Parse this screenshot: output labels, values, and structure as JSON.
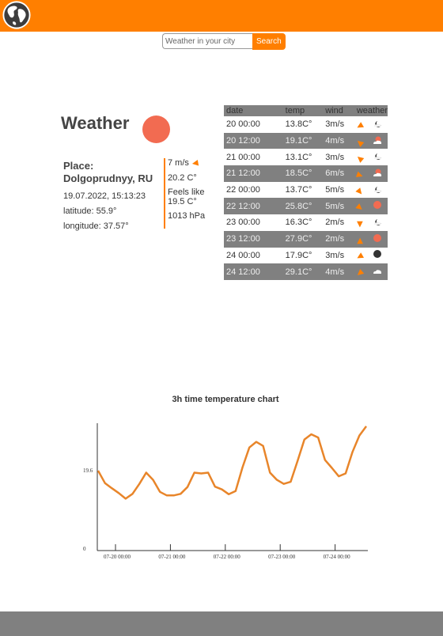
{
  "header": {
    "logo_icon": "globe-icon",
    "bg_color": "#ff7f00"
  },
  "search": {
    "placeholder": "Weather in your city",
    "button_label": "Search"
  },
  "main": {
    "title": "Weather",
    "current_icon": "sun-icon",
    "place_label": "Place:",
    "place_name": "Dolgoprudnyy, RU",
    "datetime": "19.07.2022, 15:13:23",
    "latitude": "latitude: 55.9°",
    "longitude": "longitude: 37.57°"
  },
  "current": {
    "wind": "7 m/s",
    "temp": "20.2 C°",
    "feels_label": "Feels like",
    "feels_value": "19.5 C°",
    "pressure": "1013 hPa"
  },
  "forecast": {
    "headers": [
      "date",
      "temp",
      "wind",
      "weather"
    ],
    "rows": [
      {
        "date": "20 00:00",
        "temp": "13.8C°",
        "wind": "3m/s",
        "icon": "moon-cloud-icon"
      },
      {
        "date": "20 12:00",
        "temp": "19.1C°",
        "wind": "4m/s",
        "icon": "sun-cloud-icon"
      },
      {
        "date": "21 00:00",
        "temp": "13.1C°",
        "wind": "3m/s",
        "icon": "moon-cloud-icon"
      },
      {
        "date": "21 12:00",
        "temp": "18.5C°",
        "wind": "6m/s",
        "icon": "sun-cloud-icon"
      },
      {
        "date": "22 00:00",
        "temp": "13.7C°",
        "wind": "5m/s",
        "icon": "moon-cloud-icon"
      },
      {
        "date": "22 12:00",
        "temp": "25.8C°",
        "wind": "5m/s",
        "icon": "sun-icon"
      },
      {
        "date": "23 00:00",
        "temp": "16.3C°",
        "wind": "2m/s",
        "icon": "moon-cloud-icon"
      },
      {
        "date": "23 12:00",
        "temp": "27.9C°",
        "wind": "2m/s",
        "icon": "sun-icon"
      },
      {
        "date": "24 00:00",
        "temp": "17.9C°",
        "wind": "3m/s",
        "icon": "moon-icon"
      },
      {
        "date": "24 12:00",
        "temp": "29.1C°",
        "wind": "4m/s",
        "icon": "cloud-icon"
      }
    ]
  },
  "chart_data": {
    "type": "line",
    "title": "3h time temperature chart",
    "x_ticks": [
      "07-20 00:00",
      "07-21 00:00",
      "07-22 00:00",
      "07-23 00:00",
      "07-24 00:00"
    ],
    "y_ticks": [
      "19.6",
      "0"
    ],
    "series": [
      {
        "color": "#e8852a",
        "values": [
          19.6,
          16.5,
          15.2,
          14.0,
          12.6,
          13.8,
          16.3,
          19.1,
          17.3,
          14.3,
          13.4,
          13.4,
          13.8,
          15.5,
          19.1,
          18.9,
          19.1,
          15.6,
          14.9,
          13.7,
          14.5,
          20.4,
          25.4,
          26.8,
          25.8,
          19.1,
          17.3,
          16.3,
          16.8,
          22.0,
          27.4,
          28.7,
          27.9,
          22.3,
          20.3,
          18.2,
          18.9,
          24.3,
          28.4,
          30.7
        ]
      }
    ]
  },
  "colors": {
    "accent": "#ff7f00",
    "row_dark": "#808080",
    "sun": "#f26b51"
  }
}
